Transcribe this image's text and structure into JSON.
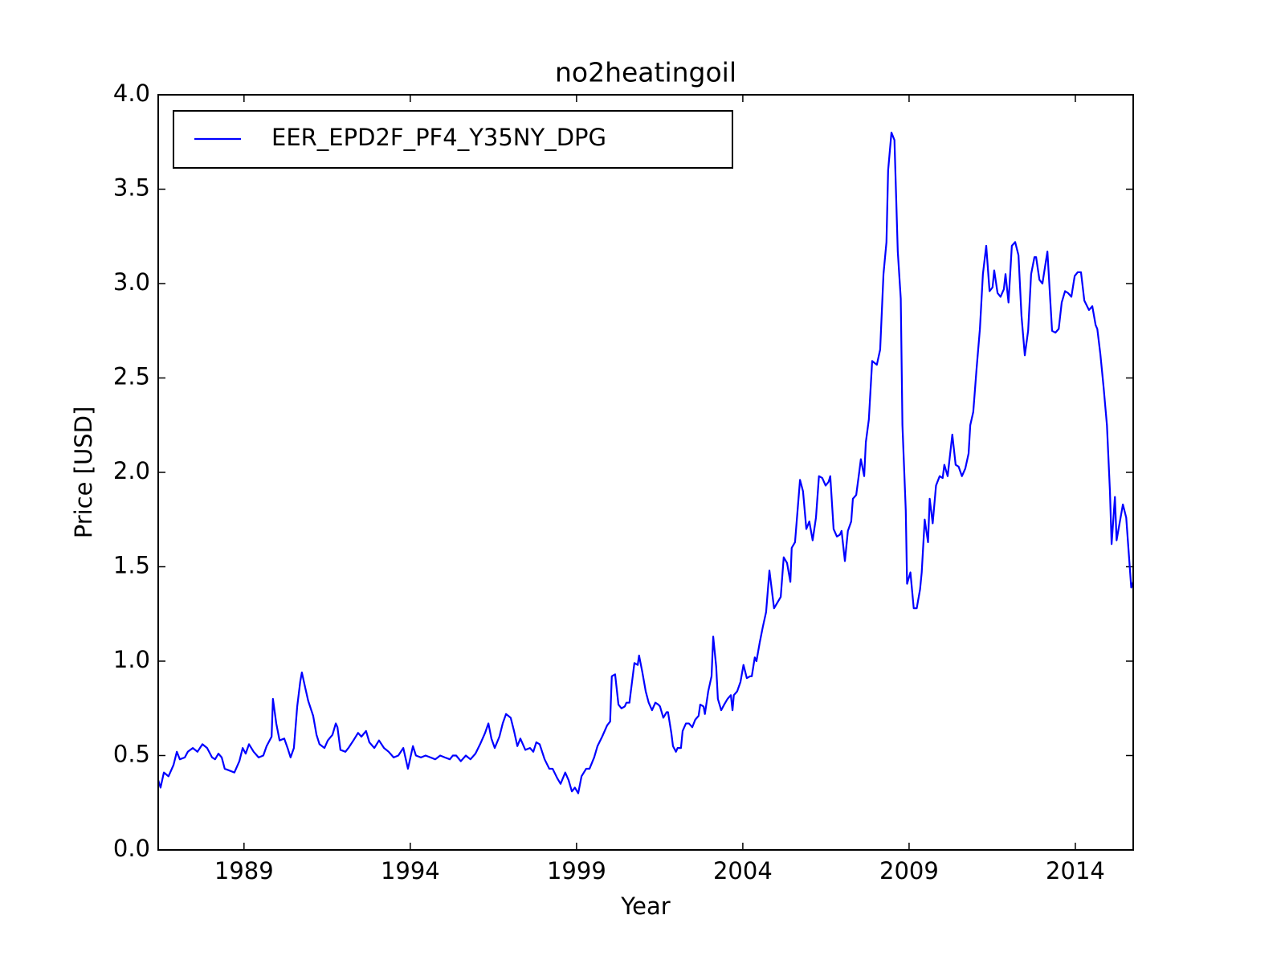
{
  "chart_data": {
    "type": "line",
    "title": "no2heatingoil",
    "xlabel": "Year",
    "ylabel": "Price [USD]",
    "legend": "upper left",
    "x": [
      1986.42,
      1986.49,
      1986.59,
      1986.73,
      1986.88,
      1986.98,
      1987.07,
      1987.22,
      1987.31,
      1987.46,
      1987.6,
      1987.75,
      1987.89,
      1988.04,
      1988.13,
      1988.23,
      1988.33,
      1988.42,
      1988.57,
      1988.71,
      1988.86,
      1988.96,
      1989.05,
      1989.15,
      1989.29,
      1989.44,
      1989.58,
      1989.68,
      1989.83,
      1989.87,
      1989.97,
      1990.07,
      1990.21,
      1990.31,
      1990.4,
      1990.5,
      1990.6,
      1990.69,
      1990.74,
      1990.84,
      1990.93,
      1991.08,
      1991.18,
      1991.27,
      1991.42,
      1991.52,
      1991.66,
      1991.76,
      1991.81,
      1991.9,
      1992.05,
      1992.14,
      1992.29,
      1992.43,
      1992.53,
      1992.67,
      1992.77,
      1992.92,
      1993.06,
      1993.21,
      1993.35,
      1993.5,
      1993.64,
      1993.79,
      1993.93,
      1994.08,
      1994.17,
      1994.32,
      1994.46,
      1994.61,
      1994.75,
      1994.9,
      1995.04,
      1995.19,
      1995.28,
      1995.38,
      1995.52,
      1995.67,
      1995.81,
      1995.96,
      1996.1,
      1996.25,
      1996.35,
      1996.44,
      1996.54,
      1996.68,
      1996.78,
      1996.88,
      1997.02,
      1997.12,
      1997.22,
      1997.31,
      1997.46,
      1997.6,
      1997.7,
      1997.79,
      1997.89,
      1998.04,
      1998.18,
      1998.28,
      1998.42,
      1998.52,
      1998.66,
      1998.76,
      1998.86,
      1998.95,
      1999.05,
      1999.15,
      1999.29,
      1999.39,
      1999.53,
      1999.63,
      1999.77,
      1999.92,
      2000.01,
      2000.06,
      2000.16,
      2000.26,
      2000.35,
      2000.45,
      2000.5,
      2000.59,
      2000.69,
      2000.74,
      2000.84,
      2000.88,
      2000.98,
      2001.08,
      2001.17,
      2001.27,
      2001.37,
      2001.46,
      2001.51,
      2001.61,
      2001.71,
      2001.75,
      2001.85,
      2001.9,
      2001.99,
      2002.04,
      2002.14,
      2002.19,
      2002.29,
      2002.38,
      2002.48,
      2002.57,
      2002.67,
      2002.72,
      2002.82,
      2002.86,
      2002.96,
      2003.06,
      2003.11,
      2003.2,
      2003.25,
      2003.35,
      2003.44,
      2003.54,
      2003.64,
      2003.69,
      2003.73,
      2003.83,
      2003.93,
      2004.02,
      2004.12,
      2004.22,
      2004.27,
      2004.36,
      2004.41,
      2004.51,
      2004.6,
      2004.7,
      2004.8,
      2004.94,
      2005.14,
      2005.23,
      2005.33,
      2005.43,
      2005.47,
      2005.57,
      2005.72,
      2005.81,
      2005.91,
      2006.0,
      2006.1,
      2006.2,
      2006.29,
      2006.39,
      2006.49,
      2006.58,
      2006.63,
      2006.73,
      2006.83,
      2006.92,
      2006.97,
      2007.07,
      2007.16,
      2007.26,
      2007.31,
      2007.41,
      2007.5,
      2007.55,
      2007.65,
      2007.7,
      2007.79,
      2007.89,
      2008.03,
      2008.13,
      2008.23,
      2008.32,
      2008.37,
      2008.47,
      2008.56,
      2008.66,
      2008.75,
      2008.8,
      2008.9,
      2008.94,
      2009.04,
      2009.14,
      2009.23,
      2009.33,
      2009.38,
      2009.47,
      2009.57,
      2009.62,
      2009.71,
      2009.81,
      2009.92,
      2010.01,
      2010.06,
      2010.16,
      2010.3,
      2010.4,
      2010.49,
      2010.59,
      2010.69,
      2010.79,
      2010.84,
      2010.93,
      2011.03,
      2011.13,
      2011.22,
      2011.32,
      2011.42,
      2011.51,
      2011.56,
      2011.66,
      2011.75,
      2011.85,
      2011.9,
      2011.99,
      2012.09,
      2012.19,
      2012.29,
      2012.38,
      2012.48,
      2012.58,
      2012.67,
      2012.77,
      2012.82,
      2012.92,
      2013.01,
      2013.16,
      2013.3,
      2013.4,
      2013.5,
      2013.59,
      2013.69,
      2013.78,
      2013.88,
      2013.98,
      2014.07,
      2014.17,
      2014.27,
      2014.41,
      2014.51,
      2014.61,
      2014.66,
      2014.75,
      2014.85,
      2014.95,
      2015.04,
      2015.09,
      2015.19,
      2015.24,
      2015.43,
      2015.53,
      2015.68,
      2015.74
    ],
    "series": [
      {
        "name": "EER_EPD2F_PF4_Y35NY_DPG",
        "color": "#0000ff",
        "values": [
          0.37,
          0.33,
          0.41,
          0.39,
          0.45,
          0.52,
          0.48,
          0.49,
          0.52,
          0.54,
          0.52,
          0.56,
          0.54,
          0.49,
          0.48,
          0.51,
          0.49,
          0.43,
          0.42,
          0.41,
          0.47,
          0.54,
          0.51,
          0.56,
          0.52,
          0.49,
          0.5,
          0.55,
          0.6,
          0.8,
          0.67,
          0.58,
          0.59,
          0.54,
          0.49,
          0.54,
          0.76,
          0.89,
          0.94,
          0.86,
          0.79,
          0.71,
          0.61,
          0.56,
          0.54,
          0.58,
          0.61,
          0.67,
          0.65,
          0.53,
          0.52,
          0.54,
          0.58,
          0.62,
          0.6,
          0.63,
          0.57,
          0.54,
          0.58,
          0.54,
          0.52,
          0.49,
          0.5,
          0.54,
          0.43,
          0.55,
          0.5,
          0.49,
          0.5,
          0.49,
          0.48,
          0.5,
          0.49,
          0.48,
          0.5,
          0.5,
          0.47,
          0.5,
          0.48,
          0.51,
          0.56,
          0.62,
          0.67,
          0.59,
          0.54,
          0.6,
          0.67,
          0.72,
          0.7,
          0.63,
          0.55,
          0.59,
          0.53,
          0.54,
          0.52,
          0.57,
          0.56,
          0.48,
          0.43,
          0.43,
          0.38,
          0.35,
          0.41,
          0.37,
          0.31,
          0.33,
          0.3,
          0.39,
          0.43,
          0.43,
          0.49,
          0.55,
          0.6,
          0.66,
          0.68,
          0.92,
          0.93,
          0.77,
          0.75,
          0.76,
          0.78,
          0.78,
          0.92,
          0.99,
          0.98,
          1.03,
          0.94,
          0.84,
          0.78,
          0.74,
          0.78,
          0.77,
          0.76,
          0.7,
          0.73,
          0.73,
          0.62,
          0.55,
          0.52,
          0.54,
          0.54,
          0.63,
          0.67,
          0.67,
          0.65,
          0.69,
          0.71,
          0.77,
          0.76,
          0.72,
          0.84,
          0.92,
          1.13,
          0.97,
          0.8,
          0.74,
          0.77,
          0.8,
          0.82,
          0.74,
          0.82,
          0.84,
          0.89,
          0.98,
          0.91,
          0.92,
          0.92,
          1.02,
          1.0,
          1.1,
          1.18,
          1.26,
          1.48,
          1.28,
          1.34,
          1.55,
          1.52,
          1.42,
          1.6,
          1.63,
          1.96,
          1.9,
          1.7,
          1.74,
          1.64,
          1.76,
          1.98,
          1.97,
          1.93,
          1.95,
          1.98,
          1.7,
          1.66,
          1.67,
          1.69,
          1.53,
          1.69,
          1.74,
          1.86,
          1.88,
          2.0,
          2.07,
          1.98,
          2.16,
          2.28,
          2.59,
          2.57,
          2.65,
          3.05,
          3.22,
          3.6,
          3.8,
          3.76,
          3.17,
          2.92,
          2.25,
          1.8,
          1.41,
          1.47,
          1.28,
          1.28,
          1.38,
          1.47,
          1.75,
          1.63,
          1.86,
          1.73,
          1.93,
          1.98,
          1.97,
          2.04,
          1.98,
          2.2,
          2.04,
          2.03,
          1.98,
          2.02,
          2.1,
          2.25,
          2.32,
          2.55,
          2.76,
          3.05,
          3.2,
          2.96,
          2.98,
          3.07,
          2.95,
          2.93,
          2.97,
          3.05,
          2.9,
          3.2,
          3.22,
          3.15,
          2.83,
          2.62,
          2.75,
          3.05,
          3.14,
          3.14,
          3.02,
          3.0,
          3.17,
          2.75,
          2.74,
          2.76,
          2.9,
          2.96,
          2.95,
          2.93,
          3.04,
          3.06,
          3.06,
          2.91,
          2.86,
          2.88,
          2.78,
          2.76,
          2.63,
          2.45,
          2.25,
          1.9,
          1.62,
          1.87,
          1.64,
          1.83,
          1.76,
          1.39,
          1.42
        ]
      }
    ],
    "xlim": [
      1986.42,
      2015.74
    ],
    "xticks": [
      1989,
      1994,
      1999,
      2004,
      2009,
      2014
    ],
    "ylim": [
      0,
      4
    ],
    "yticks": [
      {
        "value": 0,
        "label": "0.0"
      },
      0.5,
      {
        "value": 1,
        "label": "1.0"
      },
      1.5,
      {
        "value": 2,
        "label": "2.0"
      },
      2.5,
      {
        "value": 3,
        "label": "3.0"
      },
      3.5,
      {
        "value": 4,
        "label": "4.0"
      }
    ]
  }
}
